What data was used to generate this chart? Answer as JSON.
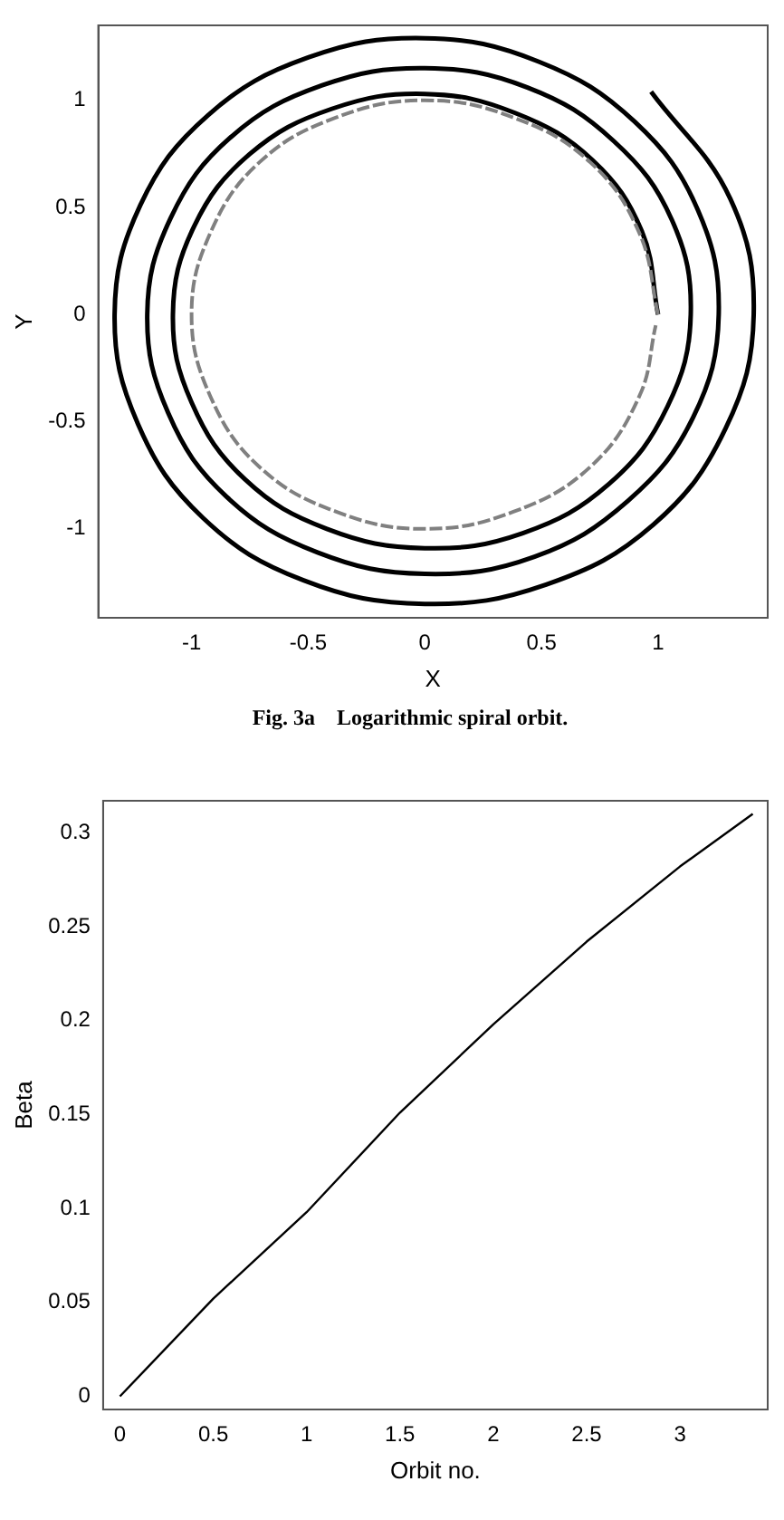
{
  "chart_data": [
    {
      "type": "line",
      "title": "Fig. 3a    Logarithmic spiral orbit.",
      "xlabel": "X",
      "ylabel": "Y",
      "xlim": [
        -1.4,
        1.47
      ],
      "ylim": [
        -1.415,
        1.35
      ],
      "xticks": [
        -1,
        -0.5,
        0,
        0.5,
        1
      ],
      "yticks": [
        -1,
        -0.5,
        0,
        0.5,
        1
      ],
      "marker": "none",
      "series": [
        {
          "color": "#000000",
          "line_style": "solid",
          "x": [
            1,
            0.93,
            0.72,
            0.39,
            0,
            -0.4,
            -0.75,
            -0.99,
            -1.08,
            -1.0,
            -0.77,
            -0.42,
            0,
            0.42,
            0.79,
            1.04,
            1.14,
            1.06,
            0.81,
            0.44,
            0,
            -0.44,
            -0.83,
            -1.09,
            -1.19,
            -1.1,
            -0.85,
            -0.46,
            0,
            0.47,
            0.87,
            1.15,
            1.26,
            1.17,
            0.9,
            0.49,
            0,
            -0.5,
            -0.93,
            -1.22,
            -1.33,
            -1.23,
            -0.95,
            -0.52,
            0,
            0.52,
            0.98,
            1.29,
            1.41,
            1.31,
            0.97
          ],
          "values": [
            0,
            0.39,
            0.72,
            0.94,
            1.03,
            0.96,
            0.75,
            0.41,
            0,
            -0.41,
            -0.77,
            -1.0,
            -1.09,
            -1.02,
            -0.79,
            -0.43,
            0,
            0.44,
            0.81,
            1.06,
            1.15,
            1.07,
            0.83,
            0.45,
            0,
            -0.46,
            -0.85,
            -1.11,
            -1.21,
            -1.13,
            -0.87,
            -0.48,
            0,
            0.49,
            0.9,
            1.18,
            1.29,
            1.2,
            0.93,
            0.51,
            0,
            -0.51,
            -0.95,
            -1.24,
            -1.35,
            -1.26,
            -0.98,
            -0.53,
            0,
            0.54,
            1.04
          ]
        },
        {
          "color": "#808080",
          "line_style": "dashed",
          "x": [
            1,
            0.92,
            0.71,
            0.38,
            0,
            -0.38,
            -0.71,
            -0.92,
            -1,
            -0.92,
            -0.71,
            -0.38,
            0,
            0.38,
            0.71,
            0.92,
            0.99
          ],
          "values": [
            0,
            0.38,
            0.71,
            0.92,
            1,
            0.92,
            0.71,
            0.38,
            0,
            -0.38,
            -0.71,
            -0.92,
            -1,
            -0.92,
            -0.71,
            -0.38,
            -0.05
          ]
        }
      ]
    },
    {
      "type": "line",
      "xlabel": "Orbit no.",
      "ylabel": "Beta",
      "xlim": [
        -0.09,
        3.47
      ],
      "ylim": [
        -0.007,
        0.317
      ],
      "xticks": [
        0,
        0.5,
        1,
        1.5,
        2,
        2.5,
        3
      ],
      "yticks": [
        0,
        0.05,
        0.1,
        0.15,
        0.2,
        0.25,
        0.3
      ],
      "marker": "none",
      "series": [
        {
          "color": "#000000",
          "line_style": "solid",
          "x": [
            0,
            0.5,
            1,
            1.5,
            2,
            2.5,
            3,
            3.39
          ],
          "values": [
            0,
            0.052,
            0.098,
            0.151,
            0.198,
            0.242,
            0.282,
            0.31
          ]
        }
      ]
    }
  ]
}
